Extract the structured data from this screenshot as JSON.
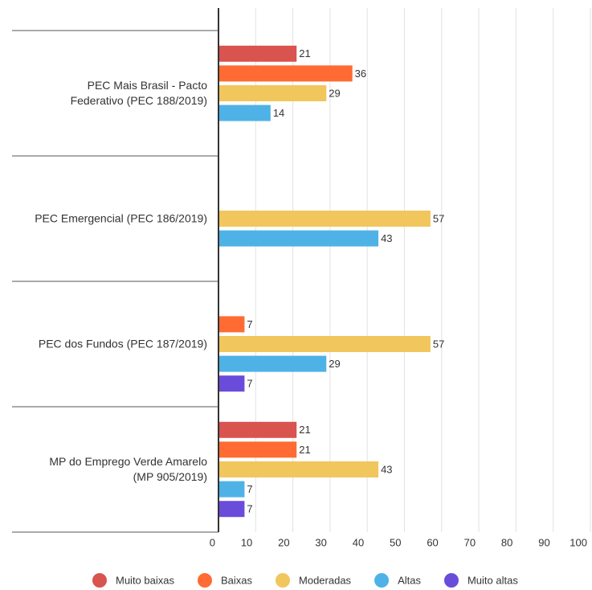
{
  "chart_data": {
    "type": "bar",
    "orientation": "horizontal",
    "categories": [
      "PEC Mais Brasil - Pacto\nFederativo (PEC 188/2019)",
      "PEC Emergencial (PEC 186/2019)",
      "PEC dos Fundos (PEC 187/2019)",
      "MP do Emprego Verde Amarelo\n(MP 905/2019)"
    ],
    "series": [
      {
        "name": "Muito baixas",
        "color": "#d9534f",
        "values": [
          21,
          null,
          null,
          21
        ]
      },
      {
        "name": "Baixas",
        "color": "#ff6b33",
        "values": [
          36,
          null,
          7,
          21
        ]
      },
      {
        "name": "Moderadas",
        "color": "#f1c65c",
        "values": [
          29,
          57,
          57,
          43
        ]
      },
      {
        "name": "Altas",
        "color": "#4fb2e6",
        "values": [
          14,
          43,
          29,
          7
        ]
      },
      {
        "name": "Muito altas",
        "color": "#6a4cdb",
        "values": [
          null,
          null,
          7,
          7
        ]
      }
    ],
    "xlim": [
      0,
      100
    ],
    "xticks": [
      0,
      10,
      20,
      30,
      40,
      50,
      60,
      70,
      80,
      90,
      100
    ],
    "grid": true,
    "legend": "bottom"
  }
}
